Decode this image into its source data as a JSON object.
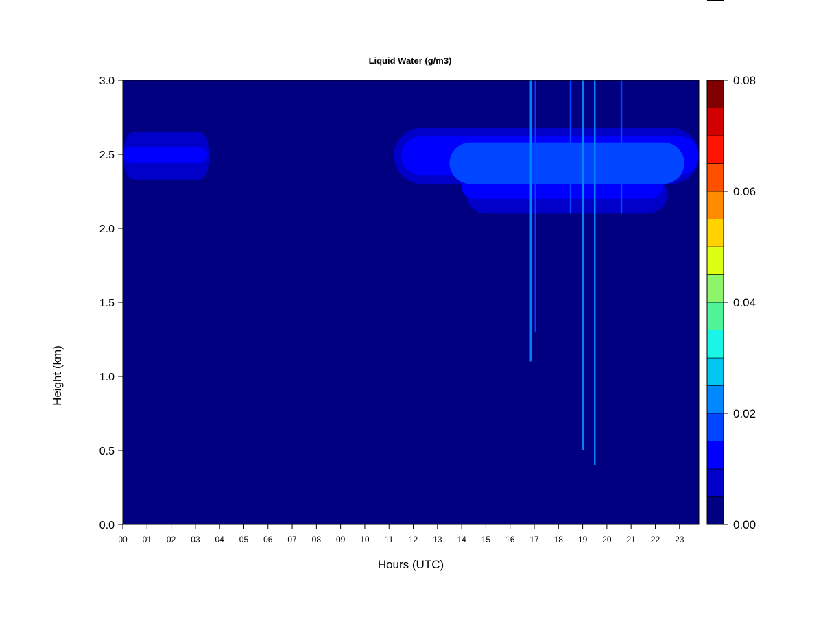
{
  "chart_data": {
    "type": "heatmap",
    "title": "Liquid Water (g/m3)",
    "xlabel": "Hours (UTC)",
    "ylabel": "Height (km)",
    "xlim": [
      0,
      23.8
    ],
    "ylim": [
      0,
      3.0
    ],
    "x_ticks": [
      {
        "value": 0,
        "label": "00"
      },
      {
        "value": 1,
        "label": "01"
      },
      {
        "value": 2,
        "label": "02"
      },
      {
        "value": 3,
        "label": "03"
      },
      {
        "value": 4,
        "label": "04"
      },
      {
        "value": 5,
        "label": "05"
      },
      {
        "value": 6,
        "label": "06"
      },
      {
        "value": 7,
        "label": "07"
      },
      {
        "value": 8,
        "label": "08"
      },
      {
        "value": 9,
        "label": "09"
      },
      {
        "value": 10,
        "label": "10"
      },
      {
        "value": 11,
        "label": "11"
      },
      {
        "value": 12,
        "label": "12"
      },
      {
        "value": 13,
        "label": "13"
      },
      {
        "value": 14,
        "label": "14"
      },
      {
        "value": 15,
        "label": "15"
      },
      {
        "value": 16,
        "label": "16"
      },
      {
        "value": 17,
        "label": "17"
      },
      {
        "value": 18,
        "label": "18"
      },
      {
        "value": 19,
        "label": "19"
      },
      {
        "value": 20,
        "label": "20"
      },
      {
        "value": 21,
        "label": "21"
      },
      {
        "value": 22,
        "label": "22"
      },
      {
        "value": 23,
        "label": "23"
      }
    ],
    "y_ticks": [
      {
        "value": 0.0,
        "label": "0.0"
      },
      {
        "value": 0.5,
        "label": "0.5"
      },
      {
        "value": 1.0,
        "label": "1.0"
      },
      {
        "value": 1.5,
        "label": "1.5"
      },
      {
        "value": 2.0,
        "label": "2.0"
      },
      {
        "value": 2.5,
        "label": "2.5"
      },
      {
        "value": 3.0,
        "label": "3.0"
      }
    ],
    "colorbar": {
      "range": [
        0,
        0.08
      ],
      "levels": [
        0.0,
        0.005,
        0.01,
        0.015,
        0.02,
        0.025,
        0.03,
        0.035,
        0.04,
        0.045,
        0.05,
        0.055,
        0.06,
        0.065,
        0.07,
        0.075,
        0.08
      ],
      "colors": [
        "#000080",
        "#0000c8",
        "#0000ff",
        "#0045ff",
        "#0088ff",
        "#00c8f0",
        "#19f5e6",
        "#50f59a",
        "#8cf56a",
        "#dcff14",
        "#ffd200",
        "#ff8c00",
        "#ff5000",
        "#ff1400",
        "#d20000",
        "#800000"
      ],
      "tick_labels": [
        {
          "value": 0.0,
          "label": "0.00"
        },
        {
          "value": 0.02,
          "label": "0.02"
        },
        {
          "value": 0.04,
          "label": "0.04"
        },
        {
          "value": 0.06,
          "label": "0.06"
        },
        {
          "value": 0.08,
          "label": "0.08"
        }
      ]
    },
    "background_value": 0.0,
    "layers": [
      {
        "x": [
          0.0,
          3.6
        ],
        "y": [
          2.33,
          2.65
        ],
        "value": 0.007
      },
      {
        "x": [
          0.0,
          3.5
        ],
        "y": [
          2.44,
          2.55
        ],
        "value": 0.012
      },
      {
        "x": [
          11.2,
          23.8
        ],
        "y": [
          2.3,
          2.68
        ],
        "value": 0.007
      },
      {
        "x": [
          11.5,
          23.8
        ],
        "y": [
          2.36,
          2.62
        ],
        "value": 0.012
      },
      {
        "x": [
          14.2,
          22.5
        ],
        "y": [
          2.1,
          2.36
        ],
        "value": 0.007
      },
      {
        "x": [
          14.0,
          22.3
        ],
        "y": [
          2.2,
          2.36
        ],
        "value": 0.012
      },
      {
        "x": [
          13.5,
          23.2
        ],
        "y": [
          2.3,
          2.58
        ],
        "value": 0.015
      }
    ],
    "columns": [
      {
        "x": 16.85,
        "y": [
          1.1,
          3.0
        ],
        "value": 0.02
      },
      {
        "x": 17.05,
        "y": [
          1.3,
          3.0
        ],
        "value": 0.015
      },
      {
        "x": 18.5,
        "y": [
          2.1,
          3.0
        ],
        "value": 0.015
      },
      {
        "x": 19.02,
        "y": [
          0.5,
          3.0
        ],
        "value": 0.022
      },
      {
        "x": 19.5,
        "y": [
          0.4,
          3.0
        ],
        "value": 0.02
      },
      {
        "x": 20.6,
        "y": [
          2.1,
          3.0
        ],
        "value": 0.015
      }
    ]
  }
}
